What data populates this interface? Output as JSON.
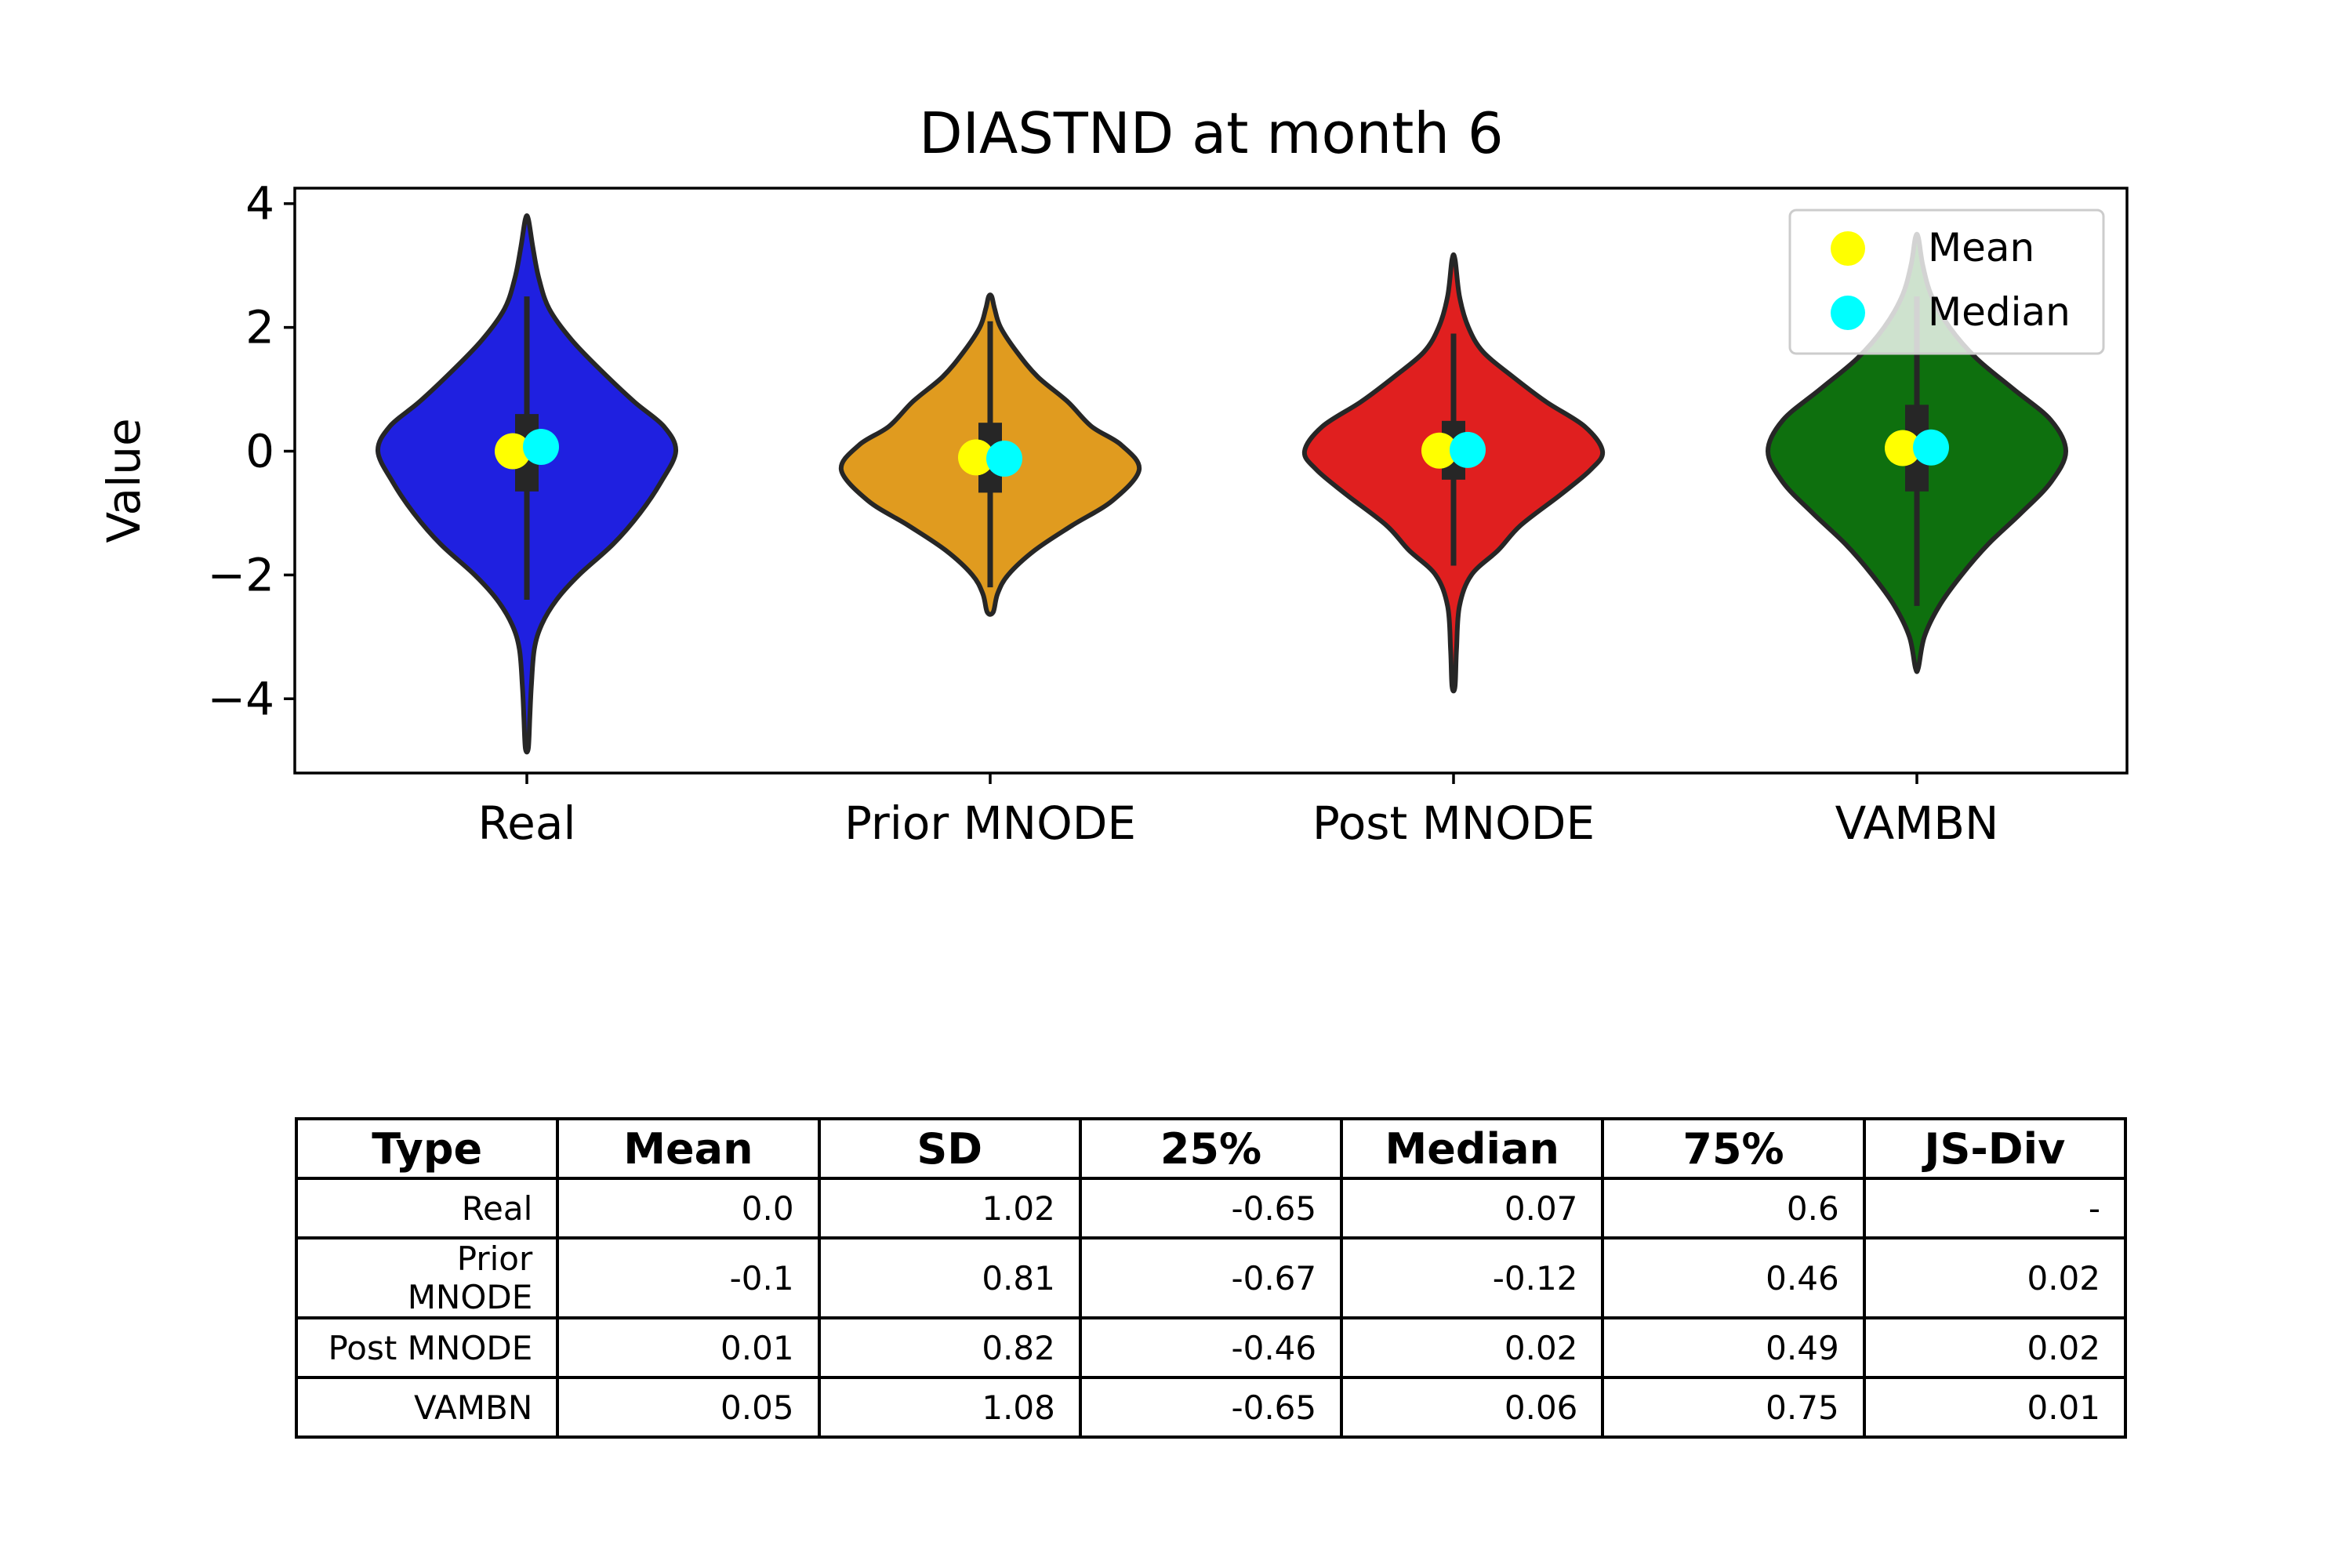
{
  "chart_data": {
    "type": "violin",
    "title": "DIASTND at month 6",
    "xlabel": "",
    "ylabel": "Value",
    "ylim": [
      -5.2,
      4.25
    ],
    "yticks": [
      4,
      2,
      0,
      -2,
      -4
    ],
    "ytick_labels": [
      "4",
      "2",
      "0",
      "−2",
      "−4"
    ],
    "categories": [
      "Real",
      "Prior MNODE",
      "Post MNODE",
      "VAMBN"
    ],
    "colors": [
      "#1f20e0",
      "#e09b1f",
      "#e01f1f",
      "#0e700e"
    ],
    "mean_color": "#ffff00",
    "median_color": "#00ffff",
    "legend": {
      "placement": "top-right",
      "entries": [
        {
          "label": "Mean",
          "color": "#ffff00"
        },
        {
          "label": "Median",
          "color": "#00ffff"
        }
      ]
    },
    "series": [
      {
        "category": "Real",
        "mean": 0.0,
        "median": 0.07,
        "q1": -0.65,
        "q3": 0.6,
        "whisker_low": -2.4,
        "whisker_high": 2.5,
        "kde_min": -4.8,
        "kde_max": 3.75,
        "profile": [
          [
            -4.8,
            0.01
          ],
          [
            -4.3,
            0.02
          ],
          [
            -3.8,
            0.03
          ],
          [
            -3.2,
            0.05
          ],
          [
            -2.8,
            0.1
          ],
          [
            -2.4,
            0.2
          ],
          [
            -2.0,
            0.35
          ],
          [
            -1.5,
            0.58
          ],
          [
            -1.0,
            0.76
          ],
          [
            -0.5,
            0.9
          ],
          [
            0.0,
            1.0
          ],
          [
            0.4,
            0.92
          ],
          [
            0.8,
            0.72
          ],
          [
            1.3,
            0.5
          ],
          [
            1.8,
            0.3
          ],
          [
            2.3,
            0.15
          ],
          [
            2.8,
            0.08
          ],
          [
            3.3,
            0.04
          ],
          [
            3.75,
            0.01
          ]
        ]
      },
      {
        "category": "Prior MNODE",
        "mean": -0.1,
        "median": -0.12,
        "q1": -0.67,
        "q3": 0.46,
        "whisker_low": -2.2,
        "whisker_high": 2.1,
        "kde_min": -2.6,
        "kde_max": 2.5,
        "profile": [
          [
            -2.6,
            0.02
          ],
          [
            -2.3,
            0.05
          ],
          [
            -2.0,
            0.12
          ],
          [
            -1.6,
            0.3
          ],
          [
            -1.2,
            0.55
          ],
          [
            -0.8,
            0.82
          ],
          [
            -0.3,
            1.0
          ],
          [
            0.1,
            0.88
          ],
          [
            0.4,
            0.68
          ],
          [
            0.8,
            0.52
          ],
          [
            1.2,
            0.32
          ],
          [
            1.6,
            0.18
          ],
          [
            2.0,
            0.07
          ],
          [
            2.3,
            0.03
          ],
          [
            2.5,
            0.01
          ]
        ]
      },
      {
        "category": "Post MNODE",
        "mean": 0.01,
        "median": 0.02,
        "q1": -0.46,
        "q3": 0.49,
        "whisker_low": -1.85,
        "whisker_high": 1.9,
        "kde_min": -3.8,
        "kde_max": 3.1,
        "profile": [
          [
            -3.8,
            0.01
          ],
          [
            -3.2,
            0.02
          ],
          [
            -2.5,
            0.04
          ],
          [
            -2.0,
            0.12
          ],
          [
            -1.6,
            0.3
          ],
          [
            -1.2,
            0.45
          ],
          [
            -0.7,
            0.72
          ],
          [
            -0.3,
            0.92
          ],
          [
            0.0,
            1.0
          ],
          [
            0.4,
            0.88
          ],
          [
            0.8,
            0.62
          ],
          [
            1.2,
            0.4
          ],
          [
            1.6,
            0.2
          ],
          [
            2.0,
            0.1
          ],
          [
            2.5,
            0.04
          ],
          [
            3.1,
            0.01
          ]
        ]
      },
      {
        "category": "VAMBN",
        "mean": 0.05,
        "median": 0.06,
        "q1": -0.65,
        "q3": 0.75,
        "whisker_low": -2.5,
        "whisker_high": 2.5,
        "kde_min": -3.5,
        "kde_max": 3.45,
        "profile": [
          [
            -3.5,
            0.01
          ],
          [
            -3.0,
            0.05
          ],
          [
            -2.5,
            0.15
          ],
          [
            -2.0,
            0.3
          ],
          [
            -1.5,
            0.48
          ],
          [
            -1.0,
            0.7
          ],
          [
            -0.5,
            0.9
          ],
          [
            0.0,
            1.0
          ],
          [
            0.5,
            0.9
          ],
          [
            1.0,
            0.65
          ],
          [
            1.5,
            0.4
          ],
          [
            2.0,
            0.22
          ],
          [
            2.5,
            0.1
          ],
          [
            3.0,
            0.04
          ],
          [
            3.45,
            0.01
          ]
        ]
      }
    ]
  },
  "table": {
    "headers": [
      "Type",
      "Mean",
      "SD",
      "25%",
      "Median",
      "75%",
      "JS-Div"
    ],
    "rows": [
      [
        "Real",
        "0.0",
        "1.02",
        "-0.65",
        "0.07",
        "0.6",
        "-"
      ],
      [
        "Prior MNODE",
        "-0.1",
        "0.81",
        "-0.67",
        "-0.12",
        "0.46",
        "0.02"
      ],
      [
        "Post MNODE",
        "0.01",
        "0.82",
        "-0.46",
        "0.02",
        "0.49",
        "0.02"
      ],
      [
        "VAMBN",
        "0.05",
        "1.08",
        "-0.65",
        "0.06",
        "0.75",
        "0.01"
      ]
    ]
  }
}
